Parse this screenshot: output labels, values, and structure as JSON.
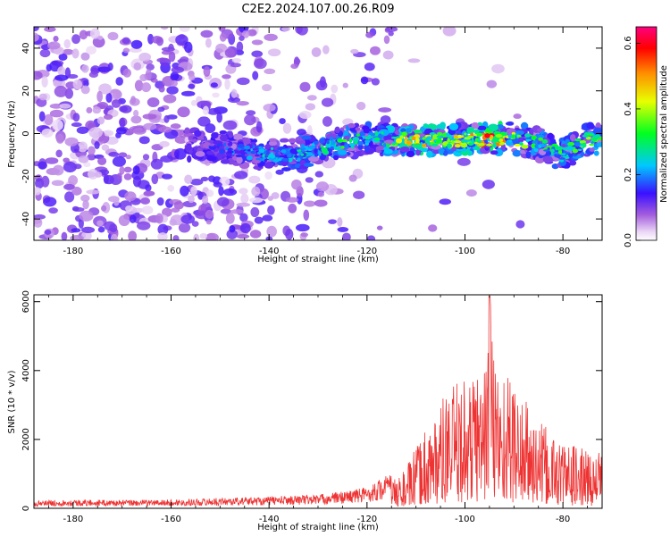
{
  "title": "C2E2.2024.107.00.26.R09",
  "chart_data": [
    {
      "type": "heatmap",
      "title": "C2E2.2024.107.00.26.R09",
      "xlabel": "Height of straight line (km)",
      "ylabel": "Frequency (Hz)",
      "xlim": [
        -188,
        -72
      ],
      "ylim": [
        -50,
        50
      ],
      "xticks": [
        -180,
        -160,
        -140,
        -120,
        -100,
        -80
      ],
      "yticks": [
        -40,
        -20,
        0,
        20,
        40
      ],
      "colorbar": {
        "label": "Normalized spectral amplitude",
        "range": [
          0.0,
          0.65
        ],
        "ticks": [
          0.0,
          0.2,
          0.4,
          0.6
        ]
      },
      "description_of_signal": {
        "noise_region_km": [
          -188,
          -125
        ],
        "noise_level": 0.05,
        "ridge": {
          "heights_km": [
            -157,
            -150,
            -145,
            -140,
            -135,
            -130,
            -125,
            -120,
            -115,
            -110,
            -105,
            -100,
            -95,
            -90,
            -85,
            -80,
            -75,
            -72
          ],
          "center_freq_hz": [
            -5,
            -6,
            -8,
            -10,
            -10,
            -7,
            -4,
            -2,
            -3,
            -3,
            -3,
            -3,
            -3,
            -2,
            -5,
            -10,
            -3,
            -3
          ],
          "peak_amplitude": [
            0.15,
            0.2,
            0.22,
            0.28,
            0.3,
            0.32,
            0.35,
            0.3,
            0.4,
            0.55,
            0.45,
            0.5,
            0.62,
            0.45,
            0.35,
            0.35,
            0.4,
            0.35
          ]
        }
      }
    },
    {
      "type": "line",
      "xlabel": "Height of straight line (km)",
      "ylabel": "SNR (10 * v/v)",
      "xlim": [
        -188,
        -72
      ],
      "ylim": [
        0,
        6200
      ],
      "xticks": [
        -180,
        -160,
        -140,
        -120,
        -100,
        -80
      ],
      "yticks": [
        0,
        2000,
        4000,
        6000
      ],
      "color": "#ee3333",
      "series": [
        {
          "name": "SNR",
          "x": [
            -188,
            -180,
            -170,
            -160,
            -150,
            -140,
            -130,
            -125,
            -120,
            -115,
            -112,
            -110,
            -108,
            -106,
            -104,
            -102,
            -100,
            -98,
            -96,
            -95,
            -94,
            -92,
            -90,
            -88,
            -86,
            -84,
            -82,
            -80,
            -78,
            -76,
            -74,
            -72
          ],
          "y": [
            150,
            170,
            160,
            170,
            200,
            230,
            270,
            330,
            420,
            700,
            1100,
            1600,
            2200,
            2600,
            3000,
            3300,
            3500,
            3700,
            4100,
            6150,
            4200,
            3800,
            3400,
            3000,
            2500,
            2200,
            2000,
            1800,
            1700,
            1600,
            1500,
            1500
          ]
        }
      ]
    }
  ]
}
